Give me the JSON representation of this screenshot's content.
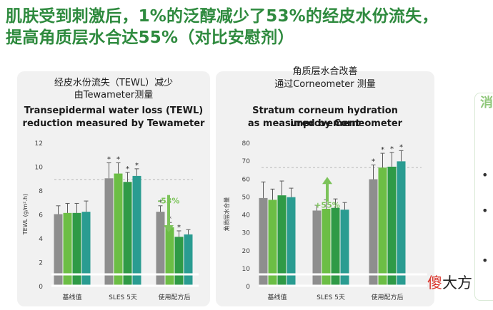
{
  "headline": {
    "line1": "肌肤受到刺激后，1%的泛醇减少了53%的经皮水份流失，",
    "line2": "提高角质层水合达55%（对比安慰剂）"
  },
  "colors": {
    "gray": "#8e8e8e",
    "green1": "#6cbe45",
    "green2": "#2f9a46",
    "green3": "#1d7a55",
    "teal": "#2a9c91",
    "arrow": "#7cc35a"
  },
  "chart_data": [
    {
      "type": "bar",
      "title_zh_1": "经皮水份流失（TEWL）减少",
      "title_zh_2": "由Tewameter测量",
      "title_en_1": "Transepidermal water loss (TEWL)",
      "title_en_2": "reduction measured by Tewameter",
      "ylabel": "TEWL (g/m².h)",
      "ylim": [
        0,
        12
      ],
      "yticks": [
        "0",
        "2",
        "4",
        "6",
        "8",
        "10",
        "12"
      ],
      "categories": [
        "基线值",
        "SLES 5天",
        "使用配方后"
      ],
      "series_values": [
        [
          6.0,
          9.0,
          6.2
        ],
        [
          6.1,
          9.4,
          4.9
        ],
        [
          6.1,
          8.7,
          4.1
        ],
        [
          6.2,
          9.2,
          4.3
        ]
      ],
      "errors": [
        [
          0.7,
          1.3,
          0.5
        ],
        [
          0.8,
          0.9,
          0.4
        ],
        [
          0.8,
          0.8,
          0.5
        ],
        [
          0.9,
          0.6,
          0.4
        ]
      ],
      "stars": [
        [
          false,
          true,
          true
        ],
        [
          false,
          true,
          true
        ],
        [
          false,
          true,
          true
        ],
        [
          false,
          true,
          false
        ]
      ],
      "annotation": "-53%",
      "arrow_dir": "down",
      "arrow_from": 7.6,
      "arrow_to": 4.6,
      "ref_line": 8.9
    },
    {
      "type": "bar",
      "title_zh_1": "角质层水合改善",
      "title_zh_2": "通过Corneometer 测量",
      "title_en_1": "Stratum corneum hydration improvement",
      "title_en_2": "as measured by Corneometer",
      "ylabel": "角质层水合量",
      "ylim": [
        0,
        80
      ],
      "yticks": [
        "0",
        "10",
        "20",
        "30",
        "40",
        "50",
        "60",
        "70",
        "80"
      ],
      "categories": [
        "基线值",
        "SLES 5天",
        "使用配方后"
      ],
      "series_values": [
        [
          49,
          42,
          59.5
        ],
        [
          48,
          43,
          66
        ],
        [
          50.5,
          43.5,
          66.5
        ],
        [
          49.5,
          42.5,
          69.5
        ]
      ],
      "errors": [
        [
          9,
          3,
          8
        ],
        [
          6,
          5,
          8
        ],
        [
          8,
          5,
          8
        ],
        [
          5,
          4,
          6
        ]
      ],
      "stars": [
        [
          false,
          false,
          true
        ],
        [
          false,
          false,
          true
        ],
        [
          false,
          false,
          true
        ],
        [
          false,
          false,
          true
        ]
      ],
      "annotation": "+55%",
      "arrow_dir": "up",
      "arrow_from": 47,
      "arrow_to": 60,
      "ref_line": 66
    }
  ],
  "side": {
    "partial_char": "消"
  },
  "watermark": {
    "red": "傻",
    "rest": "大方"
  }
}
